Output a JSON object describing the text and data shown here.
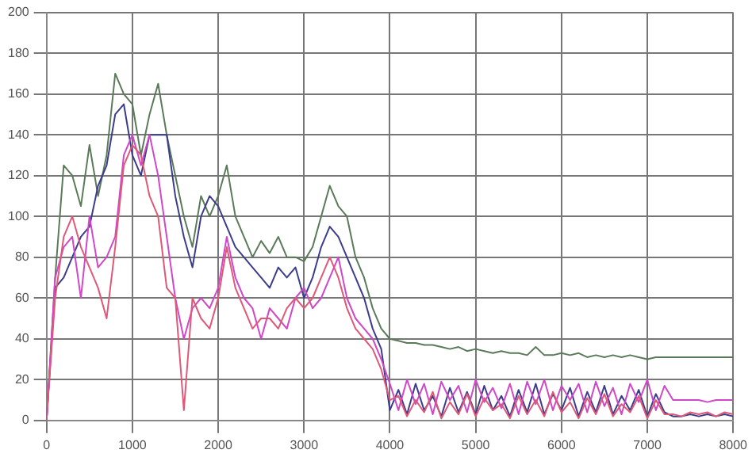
{
  "chart_data": {
    "type": "line",
    "x": [
      0,
      100,
      200,
      300,
      400,
      500,
      600,
      700,
      800,
      900,
      1000,
      1100,
      1200,
      1300,
      1400,
      1500,
      1600,
      1700,
      1800,
      1900,
      2000,
      2100,
      2200,
      2300,
      2400,
      2500,
      2600,
      2700,
      2800,
      2900,
      3000,
      3100,
      3200,
      3300,
      3400,
      3500,
      3600,
      3700,
      3800,
      3900,
      4000,
      4100,
      4200,
      4300,
      4400,
      4500,
      4600,
      4700,
      4800,
      4900,
      5000,
      5100,
      5200,
      5300,
      5400,
      5500,
      5600,
      5700,
      5800,
      5900,
      6000,
      6100,
      6200,
      6300,
      6400,
      6500,
      6600,
      6700,
      6800,
      6900,
      7000,
      7100,
      7200,
      7300,
      7400,
      7500,
      7600,
      7700,
      7800,
      7900,
      8000
    ],
    "series": [
      {
        "color": "#e05878",
        "values": [
          0,
          60,
          90,
          100,
          85,
          75,
          65,
          50,
          85,
          125,
          135,
          130,
          110,
          100,
          65,
          60,
          5,
          60,
          50,
          45,
          60,
          85,
          65,
          55,
          45,
          50,
          50,
          45,
          55,
          60,
          55,
          60,
          70,
          80,
          70,
          55,
          45,
          40,
          35,
          25,
          10,
          12,
          2,
          10,
          4,
          14,
          1,
          9,
          3,
          13,
          2,
          11,
          5,
          8,
          1,
          12,
          3,
          10,
          2,
          14,
          4,
          9,
          1,
          11,
          3,
          13,
          2,
          8,
          4,
          12,
          1,
          10,
          3,
          3,
          2,
          4,
          3,
          4,
          2,
          4,
          3
        ]
      },
      {
        "color": "#d048c8",
        "values": [
          0,
          70,
          85,
          90,
          60,
          100,
          75,
          80,
          90,
          130,
          140,
          125,
          140,
          120,
          90,
          60,
          40,
          55,
          60,
          55,
          65,
          90,
          70,
          60,
          55,
          40,
          55,
          50,
          45,
          60,
          65,
          55,
          60,
          70,
          80,
          60,
          50,
          45,
          40,
          30,
          18,
          5,
          20,
          8,
          18,
          3,
          19,
          10,
          17,
          4,
          20,
          9,
          16,
          6,
          18,
          3,
          19,
          8,
          20,
          5,
          17,
          10,
          18,
          4,
          19,
          7,
          16,
          3,
          18,
          9,
          20,
          5,
          17,
          10,
          10,
          10,
          10,
          9,
          10,
          10,
          10
        ]
      },
      {
        "color": "#3c3c8c",
        "values": [
          0,
          65,
          70,
          80,
          90,
          95,
          115,
          125,
          150,
          155,
          130,
          120,
          140,
          140,
          140,
          110,
          90,
          75,
          100,
          110,
          105,
          95,
          85,
          80,
          75,
          70,
          65,
          75,
          70,
          75,
          60,
          70,
          85,
          95,
          90,
          80,
          70,
          60,
          45,
          35,
          5,
          15,
          3,
          18,
          5,
          12,
          2,
          16,
          4,
          14,
          3,
          17,
          5,
          12,
          2,
          15,
          4,
          18,
          3,
          13,
          5,
          16,
          2,
          14,
          4,
          17,
          3,
          12,
          5,
          15,
          2,
          13,
          4,
          2,
          2,
          3,
          2,
          3,
          2,
          3,
          2
        ]
      },
      {
        "color": "#5a7a5a",
        "values": [
          0,
          70,
          125,
          120,
          105,
          135,
          110,
          130,
          170,
          160,
          155,
          130,
          150,
          165,
          140,
          120,
          100,
          85,
          110,
          100,
          110,
          125,
          100,
          90,
          80,
          88,
          82,
          90,
          80,
          80,
          78,
          85,
          100,
          115,
          105,
          100,
          80,
          70,
          55,
          45,
          40,
          39,
          38,
          38,
          37,
          37,
          36,
          35,
          36,
          34,
          35,
          34,
          33,
          34,
          33,
          33,
          32,
          36,
          32,
          32,
          33,
          32,
          33,
          31,
          32,
          31,
          32,
          31,
          32,
          31,
          30,
          31,
          31,
          31,
          31,
          31,
          31,
          31,
          31,
          31,
          31
        ]
      }
    ],
    "xlim": [
      0,
      8000
    ],
    "xticks": [
      0,
      1000,
      2000,
      3000,
      4000,
      5000,
      6000,
      7000,
      8000
    ],
    "ylim": [
      0,
      200
    ],
    "yticks": [
      0,
      20,
      40,
      60,
      80,
      100,
      120,
      140,
      160,
      180,
      200
    ],
    "grid": true,
    "marker": "none",
    "line_style": "solid"
  }
}
